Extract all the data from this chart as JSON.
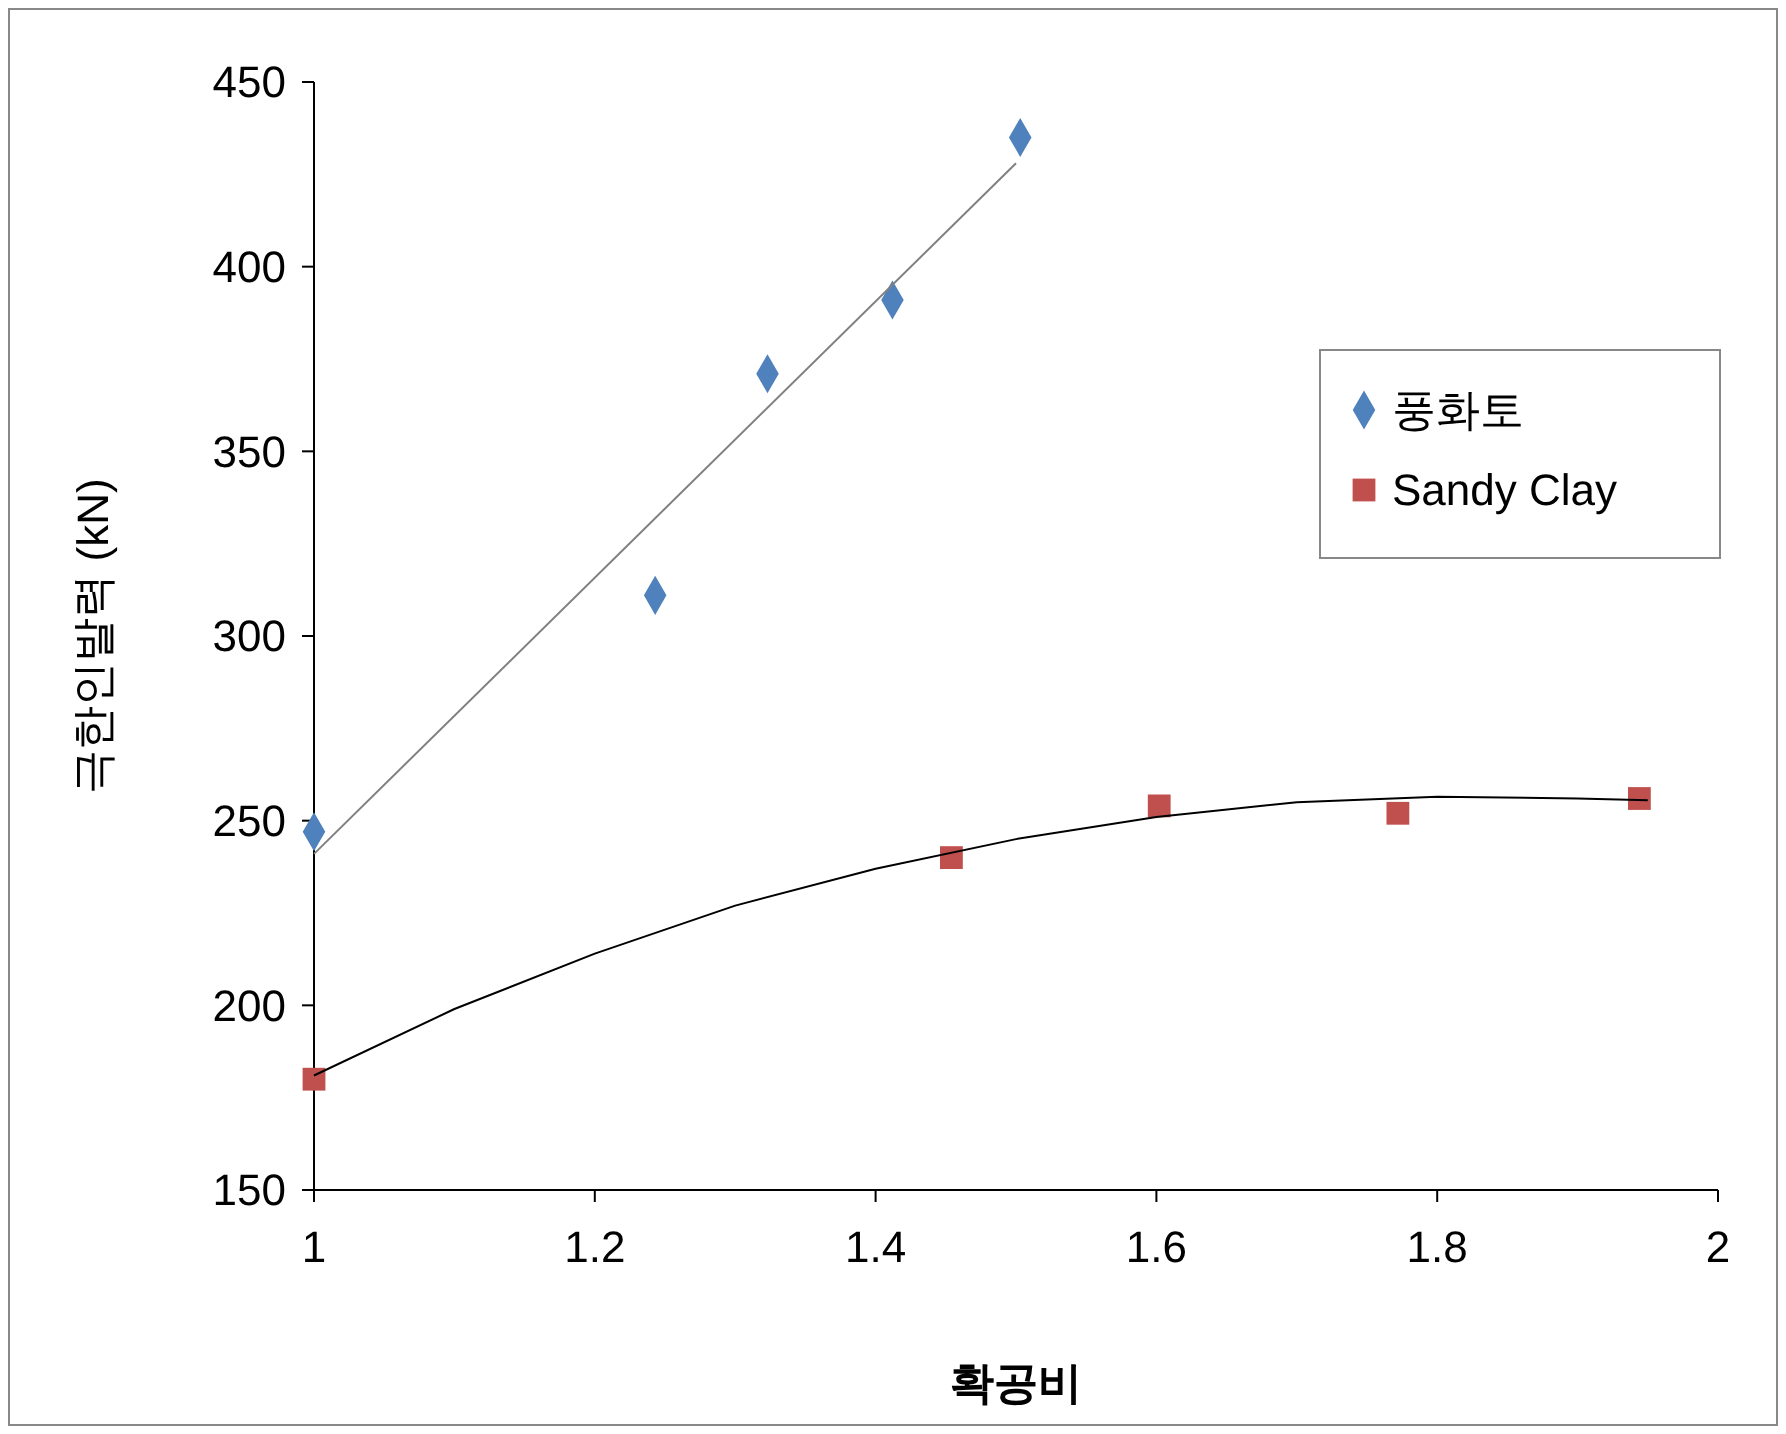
{
  "chart_data": {
    "type": "scatter",
    "xlabel": "확공비",
    "ylabel": "극한인발력 (kN)",
    "xlim": [
      1,
      2
    ],
    "xticks": [
      1,
      1.2,
      1.4,
      1.6,
      1.8,
      2
    ],
    "ylim": [
      150,
      450
    ],
    "yticks": [
      150,
      200,
      250,
      300,
      350,
      400,
      450
    ],
    "grid": false,
    "legend": "right",
    "series": [
      {
        "name": "풍화토",
        "color": "#4f81bd",
        "marker": "diamond",
        "x": [
          1,
          1.243,
          1.323,
          1.412,
          1.503
        ],
        "values": [
          247,
          311,
          371,
          391,
          435
        ]
      },
      {
        "name": "Sandy Clay",
        "color": "#c0504d",
        "marker": "square",
        "x": [
          1,
          1.454,
          1.602,
          1.772,
          1.944
        ],
        "values": [
          180,
          240,
          254,
          252,
          256
        ]
      },
      {
        "type": "line",
        "color": "#808080",
        "marker": "none",
        "x": [
          1,
          1.5
        ],
        "values": [
          241,
          428
        ]
      },
      {
        "type": "line",
        "color": "#000000",
        "marker": "none",
        "x": [
          1,
          1.1,
          1.2,
          1.3,
          1.4,
          1.5,
          1.6,
          1.7,
          1.8,
          1.9,
          1.95
        ],
        "values": [
          181,
          199,
          214,
          227,
          237,
          245,
          251,
          255,
          256.5,
          256,
          255.5
        ]
      }
    ]
  }
}
